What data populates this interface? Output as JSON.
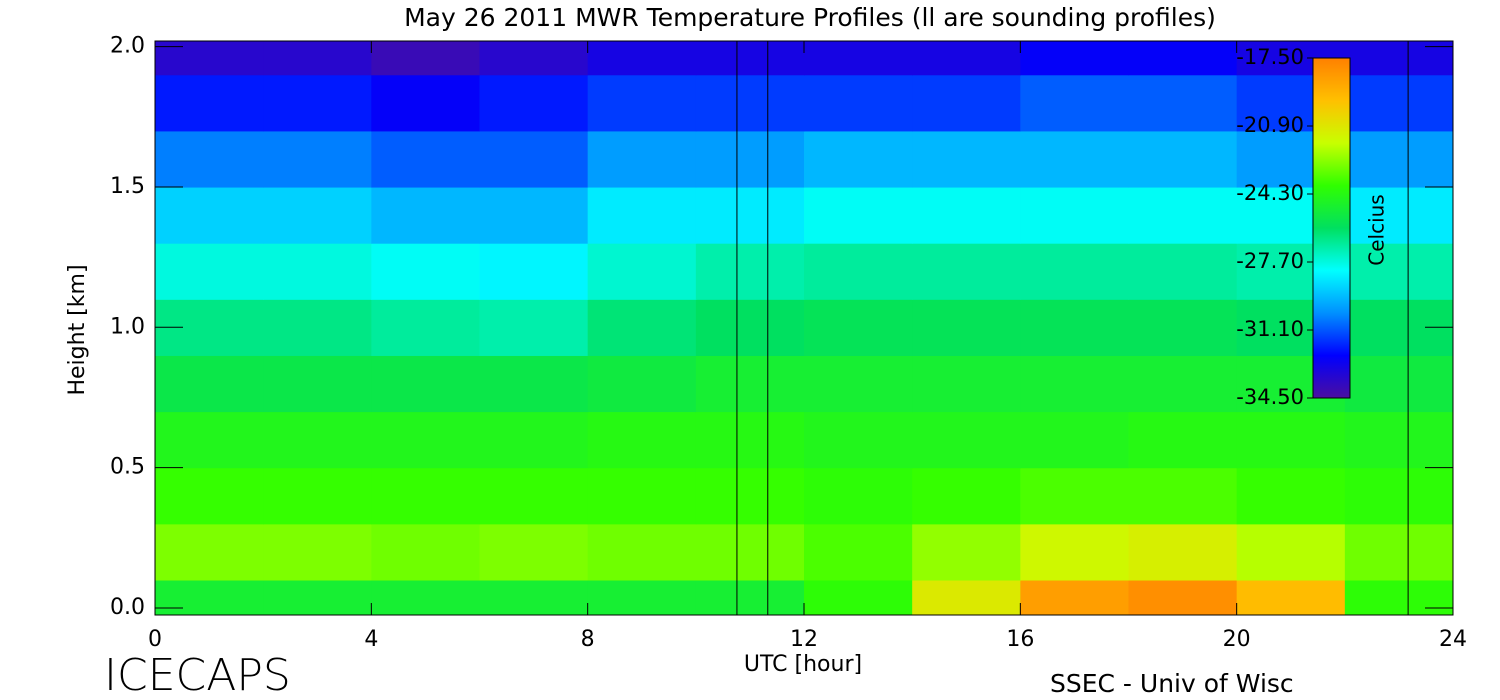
{
  "chart_data": {
    "type": "heatmap",
    "title": "May 26 2011 MWR Temperature Profiles (ll are sounding profiles)",
    "xlabel": "UTC [hour]",
    "ylabel": "Height [km]",
    "colorbar_label": "Celcius",
    "annotations": [
      "ICECAPS",
      "SSEC - Univ of Wisc"
    ],
    "x": [
      1,
      3,
      5,
      7,
      9,
      11,
      13,
      15,
      17,
      19,
      21,
      23
    ],
    "y": [
      0.0,
      0.2,
      0.4,
      0.6,
      0.8,
      1.0,
      1.2,
      1.4,
      1.6,
      1.8,
      2.0
    ],
    "values": [
      [
        -25,
        -25,
        -25,
        -25,
        -25,
        -25,
        -24,
        -21,
        -18.5,
        -18,
        -19.5,
        -24
      ],
      [
        -22.8,
        -22.8,
        -23,
        -22.8,
        -23,
        -23,
        -23.5,
        -22.5,
        -21.5,
        -21.2,
        -22,
        -23
      ],
      [
        -23.8,
        -23.8,
        -23.8,
        -23.8,
        -23.8,
        -23.8,
        -24,
        -23.8,
        -23.5,
        -23.5,
        -23.8,
        -24
      ],
      [
        -24.5,
        -24.5,
        -24.5,
        -24.5,
        -24.3,
        -24.3,
        -24.5,
        -24.5,
        -24.5,
        -24.3,
        -24.3,
        -24.5
      ],
      [
        -25.5,
        -25.5,
        -25.5,
        -25.5,
        -25.3,
        -25,
        -25,
        -25,
        -25,
        -25,
        -25,
        -25.3
      ],
      [
        -26.5,
        -26.5,
        -26.8,
        -27,
        -26.3,
        -26,
        -25.8,
        -25.8,
        -25.8,
        -25.8,
        -26,
        -26
      ],
      [
        -27.7,
        -27.7,
        -28,
        -28.3,
        -27.5,
        -27,
        -26.8,
        -26.8,
        -26.8,
        -26.8,
        -27,
        -27
      ],
      [
        -29,
        -29,
        -29.5,
        -29.5,
        -28.5,
        -28.5,
        -28,
        -28,
        -28,
        -28,
        -28,
        -28.5
      ],
      [
        -30.5,
        -30.5,
        -31,
        -31,
        -30,
        -30,
        -29.5,
        -29.5,
        -29.5,
        -29.5,
        -30,
        -30
      ],
      [
        -32,
        -32,
        -32.5,
        -32,
        -31.5,
        -31.5,
        -31.5,
        -31.5,
        -31,
        -31,
        -31.5,
        -31.5
      ],
      [
        -33.5,
        -33.5,
        -34,
        -33.5,
        -33,
        -33,
        -33,
        -33,
        -32.5,
        -32.5,
        -33,
        -33
      ]
    ],
    "sounding_x": [
      10.76,
      11.33,
      23.17
    ],
    "xlim": [
      0,
      24
    ],
    "xticks": [
      0,
      4,
      8,
      12,
      16,
      20,
      24
    ],
    "ylim": [
      -0.025,
      2.02
    ],
    "yticks": [
      {
        "value": 0,
        "label": "0.0"
      },
      0.5,
      {
        "value": 1,
        "label": "1.0"
      },
      1.5,
      {
        "value": 2,
        "label": "2.0"
      }
    ],
    "clim": [
      -34.5,
      -17.5
    ],
    "cticks": [
      {
        "value": -17.5,
        "label": "-17.50"
      },
      {
        "value": -20.9,
        "label": "-20.90"
      },
      {
        "value": -24.3,
        "label": "-24.30"
      },
      {
        "value": -27.7,
        "label": "-27.70"
      },
      {
        "value": -31.1,
        "label": "-31.10"
      },
      {
        "value": -34.5,
        "label": "-34.50"
      }
    ],
    "colormap": [
      "#4b0ea0",
      "#0000ff",
      "#0090ff",
      "#00ffff",
      "#00e060",
      "#30ff00",
      "#c8ff00",
      "#ffc000",
      "#ff8000"
    ]
  }
}
